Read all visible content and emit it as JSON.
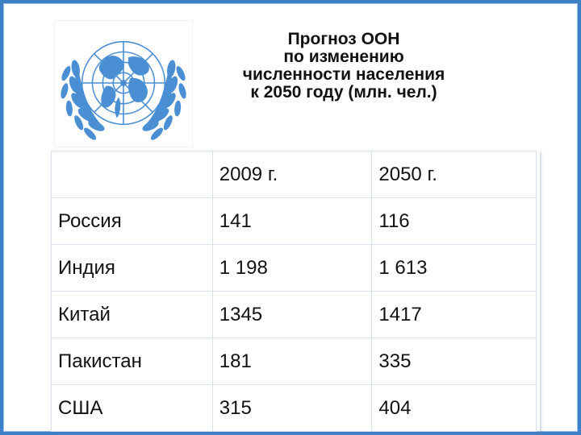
{
  "title_lines": [
    "Прогноз ООН",
    "по изменению",
    "численности населения",
    "к 2050 году (млн. чел.)"
  ],
  "table": {
    "header": [
      "",
      "2009 г.",
      "2050 г."
    ],
    "rows": [
      [
        "Россия",
        "141",
        "116"
      ],
      [
        "Индия",
        "1 198",
        "1 613"
      ],
      [
        "Китай",
        "1345",
        "1417"
      ],
      [
        "Пакистан",
        "181",
        "335"
      ],
      [
        "США",
        "315",
        "404"
      ]
    ]
  },
  "colors": {
    "un_blue": "#4a8fd4",
    "frame": "#3d7fc6"
  },
  "logo": {
    "icon": "un-emblem-icon"
  }
}
